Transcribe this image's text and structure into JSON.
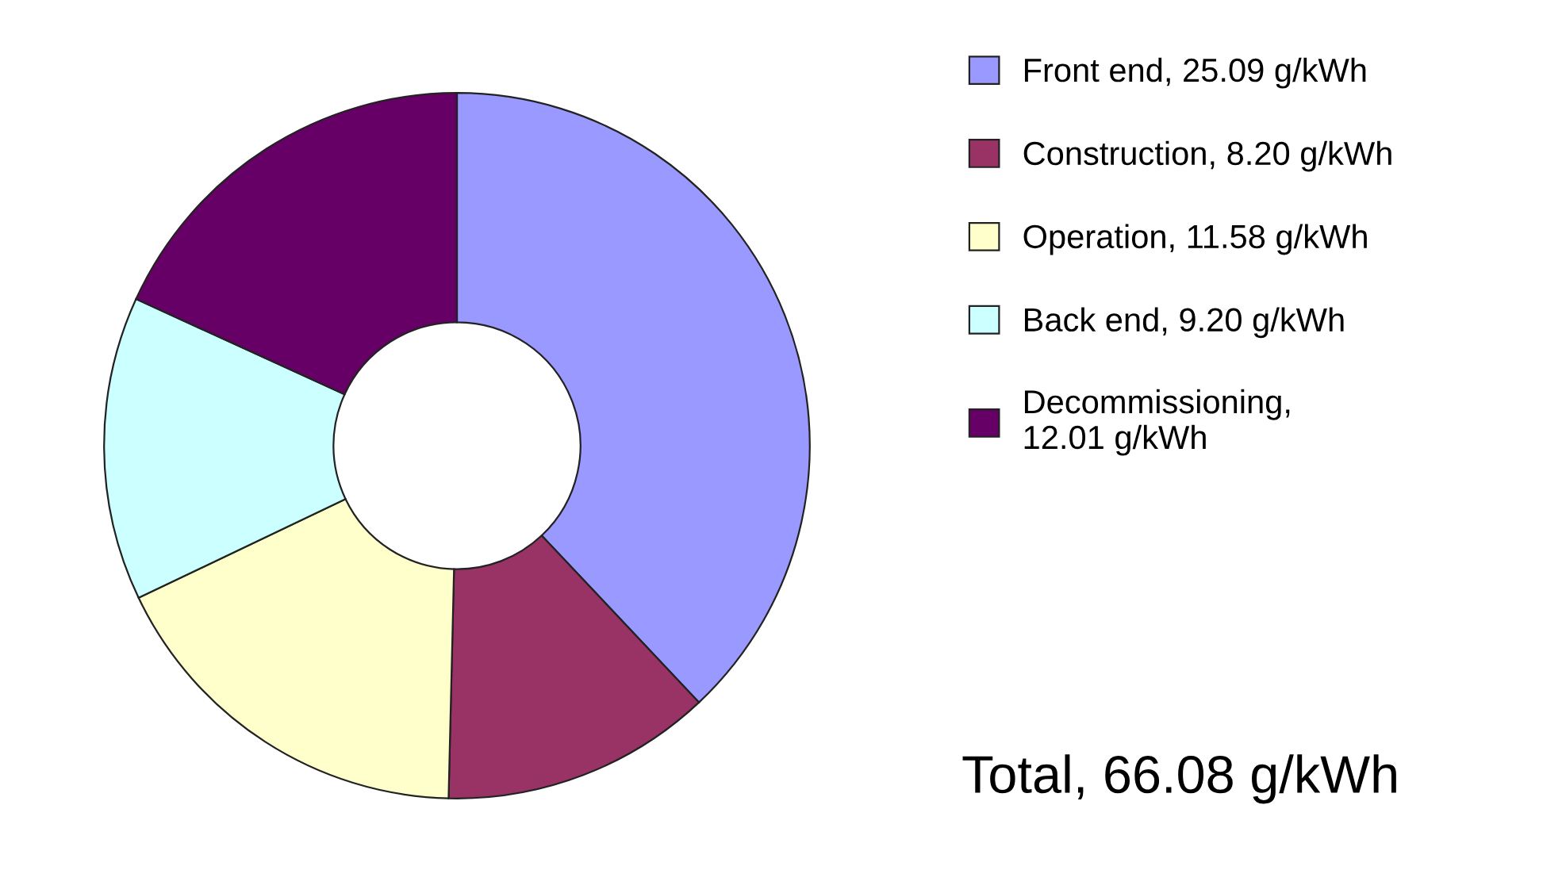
{
  "chart_data": {
    "type": "donut",
    "categories": [
      "Front end, 25.09 g/kWh",
      "Construction, 8.20 g/kWh",
      "Operation, 11.58 g/kWh",
      "Back end, 9.20 g/kWh",
      "Decommissioning,\n12.01 g/kWh"
    ],
    "values": [
      25.09,
      8.2,
      11.58,
      9.2,
      12.01
    ],
    "colors": [
      "#9999ff",
      "#993366",
      "#ffffcc",
      "#ccffff",
      "#660066"
    ],
    "legend": "right",
    "annotations": [
      "Total, 66.08 g/kWh"
    ]
  }
}
